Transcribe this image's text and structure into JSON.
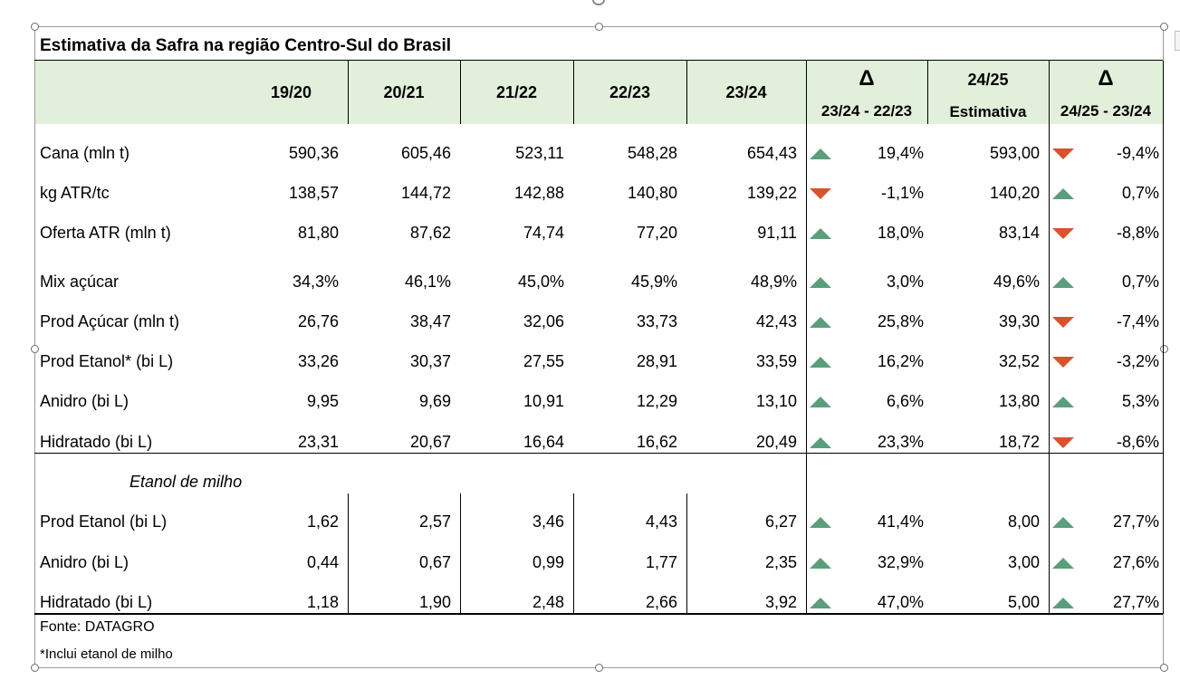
{
  "table": {
    "title": "Estimativa da Safra na região Centro-Sul do Brasil",
    "headers": [
      "19/20",
      "20/21",
      "21/22",
      "22/23",
      "23/24"
    ],
    "delta1": {
      "symbol": "Δ",
      "range": "23/24 - 22/23"
    },
    "estimate": {
      "season": "24/25",
      "label": "Estimativa"
    },
    "delta2": {
      "symbol": "Δ",
      "range": "24/25 - 23/24"
    },
    "rows": [
      {
        "label": "Cana (mln t)",
        "values": [
          "590,36",
          "605,46",
          "523,11",
          "548,28",
          "654,43"
        ],
        "d1_dir": "up",
        "d1": "19,4%",
        "est": "593,00",
        "d2_dir": "down",
        "d2": "-9,4%"
      },
      {
        "label": "kg ATR/tc",
        "values": [
          "138,57",
          "144,72",
          "142,88",
          "140,80",
          "139,22"
        ],
        "d1_dir": "down",
        "d1": "-1,1%",
        "est": "140,20",
        "d2_dir": "up",
        "d2": "0,7%"
      },
      {
        "label": "Oferta ATR (mln t)",
        "values": [
          "81,80",
          "87,62",
          "74,74",
          "77,20",
          "91,11"
        ],
        "d1_dir": "up",
        "d1": "18,0%",
        "est": "83,14",
        "d2_dir": "down",
        "d2": "-8,8%"
      },
      {
        "label": "Mix açúcar",
        "values": [
          "34,3%",
          "46,1%",
          "45,0%",
          "45,9%",
          "48,9%"
        ],
        "d1_dir": "up",
        "d1": "3,0%",
        "est": "49,6%",
        "d2_dir": "up",
        "d2": "0,7%"
      },
      {
        "label": "Prod Açúcar (mln t)",
        "values": [
          "26,76",
          "38,47",
          "32,06",
          "33,73",
          "42,43"
        ],
        "d1_dir": "up",
        "d1": "25,8%",
        "est": "39,30",
        "d2_dir": "down",
        "d2": "-7,4%"
      },
      {
        "label": "Prod Etanol* (bi L)",
        "values": [
          "33,26",
          "30,37",
          "27,55",
          "28,91",
          "33,59"
        ],
        "d1_dir": "up",
        "d1": "16,2%",
        "est": "32,52",
        "d2_dir": "down",
        "d2": "-3,2%"
      },
      {
        "label": "Anidro (bi L)",
        "values": [
          "9,95",
          "9,69",
          "10,91",
          "12,29",
          "13,10"
        ],
        "d1_dir": "up",
        "d1": "6,6%",
        "est": "13,80",
        "d2_dir": "up",
        "d2": "5,3%"
      },
      {
        "label": "Hidratado (bi L)",
        "values": [
          "23,31",
          "20,67",
          "16,64",
          "16,62",
          "20,49"
        ],
        "d1_dir": "up",
        "d1": "23,3%",
        "est": "18,72",
        "d2_dir": "down",
        "d2": "-8,6%"
      }
    ],
    "section_label": "Etanol de milho",
    "rows2": [
      {
        "label": "Prod Etanol (bi L)",
        "values": [
          "1,62",
          "2,57",
          "3,46",
          "4,43",
          "6,27"
        ],
        "d1_dir": "up",
        "d1": "41,4%",
        "est": "8,00",
        "d2_dir": "up",
        "d2": "27,7%"
      },
      {
        "label": "Anidro (bi L)",
        "values": [
          "0,44",
          "0,67",
          "0,99",
          "1,77",
          "2,35"
        ],
        "d1_dir": "up",
        "d1": "32,9%",
        "est": "3,00",
        "d2_dir": "up",
        "d2": "27,6%"
      },
      {
        "label": "Hidratado (bi L)",
        "values": [
          "1,18",
          "1,90",
          "2,48",
          "2,66",
          "3,92"
        ],
        "d1_dir": "up",
        "d1": "47,0%",
        "est": "5,00",
        "d2_dir": "up",
        "d2": "27,7%"
      }
    ],
    "source": "Fonte: DATAGRO",
    "footnote": "*Inclui etanol de milho"
  },
  "colors": {
    "header_bg": "#e2efda",
    "arrow_up": "#5a9e7b",
    "arrow_down": "#d9522d"
  }
}
